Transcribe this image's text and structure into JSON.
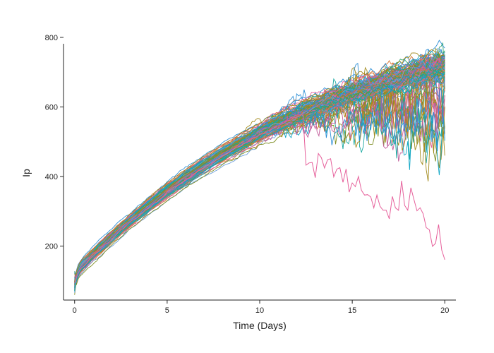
{
  "chart_data": {
    "type": "line",
    "title": "",
    "xlabel": "Time (Days)",
    "ylabel": "Ip",
    "xlim": [
      -0.6,
      20.6
    ],
    "ylim": [
      45,
      810
    ],
    "xticks": [
      0,
      5,
      10,
      15,
      20
    ],
    "yticks": [
      200,
      400,
      600,
      800
    ],
    "grid": false,
    "legend": "none",
    "series_count": 150,
    "palette": [
      "#e6609b",
      "#13a8c7",
      "#2fa56a",
      "#a28a1c",
      "#6d9fdc",
      "#d97a3a",
      "#19a8a0",
      "#7f8f25",
      "#c25b9a",
      "#2d8fd6"
    ],
    "summary_series": [
      {
        "stat": "mean",
        "x": [
          0,
          0.25,
          1,
          2,
          3,
          4,
          5,
          6,
          7,
          8,
          9,
          10,
          11,
          12,
          13,
          14,
          15,
          16,
          17,
          18,
          19,
          20
        ],
        "y": [
          95,
          135,
          175,
          225,
          272,
          315,
          357,
          395,
          430,
          463,
          494,
          523,
          550,
          575,
          598,
          620,
          640,
          658,
          675,
          690,
          704,
          718
        ]
      },
      {
        "stat": "min_outlier",
        "x": [
          12.5,
          14,
          15,
          16,
          17,
          18,
          19,
          19.5,
          20
        ],
        "y": [
          470,
          430,
          380,
          330,
          290,
          340,
          300,
          210,
          185
        ]
      }
    ]
  }
}
